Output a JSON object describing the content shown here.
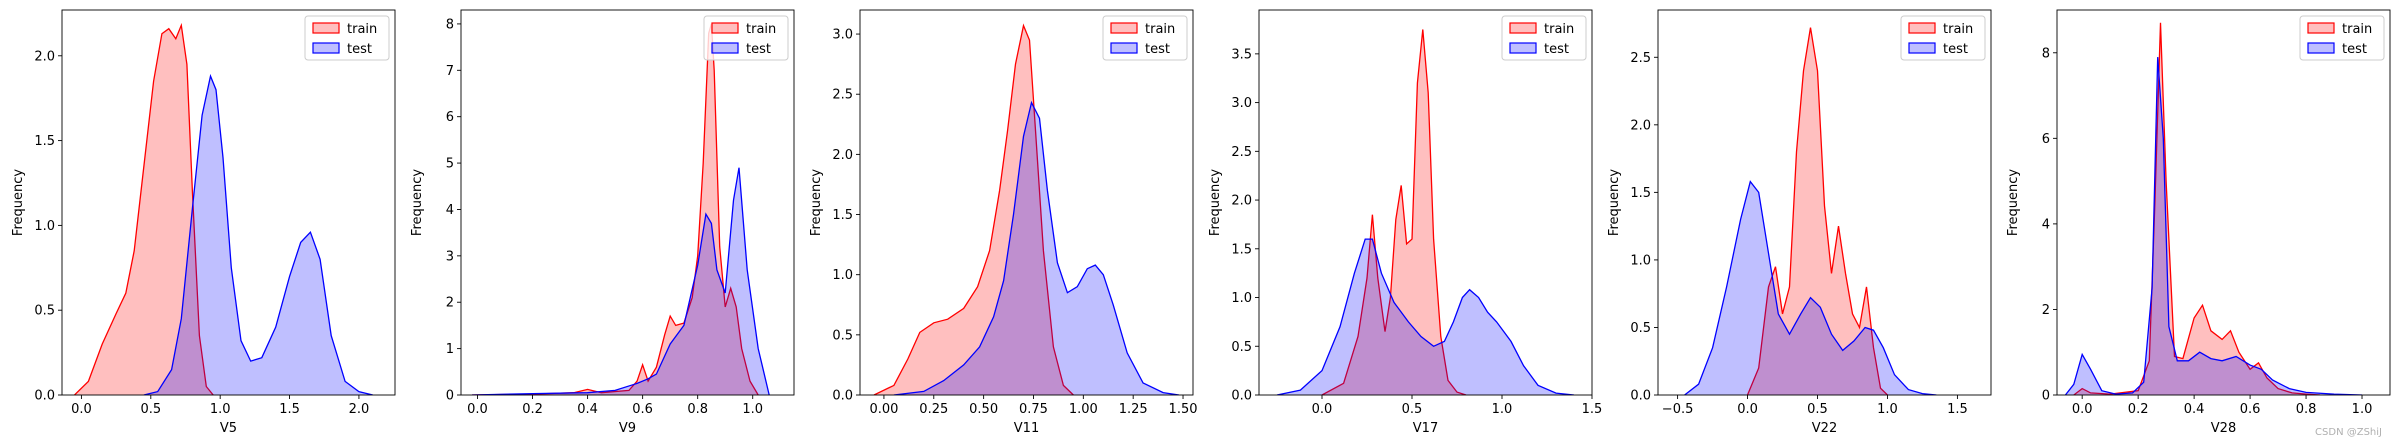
{
  "colors": {
    "train": "#ff0000",
    "test": "#0000ff",
    "train_fill": "#ff0000",
    "test_fill": "#0000ff"
  },
  "watermark": "CSDN @ZShiJ",
  "chart_data": [
    {
      "type": "area",
      "xlabel": "V5",
      "ylabel": "Frequency",
      "xlim": [
        -0.14,
        2.26
      ],
      "ylim": [
        0,
        2.27
      ],
      "xticks": [
        0.0,
        0.5,
        1.0,
        1.5,
        2.0
      ],
      "xtick_labels": [
        "0.0",
        "0.5",
        "1.0",
        "1.5",
        "2.0"
      ],
      "yticks": [
        0.0,
        0.5,
        1.0,
        1.5,
        2.0
      ],
      "ytick_labels": [
        "0.0",
        "0.5",
        "1.0",
        "1.5",
        "2.0"
      ],
      "legend": [
        "train",
        "test"
      ],
      "legend_loc": "upper right",
      "series": [
        {
          "name": "train",
          "x": [
            -0.05,
            0.05,
            0.15,
            0.25,
            0.32,
            0.38,
            0.45,
            0.52,
            0.58,
            0.63,
            0.68,
            0.72,
            0.76,
            0.8,
            0.85,
            0.9,
            0.95
          ],
          "y": [
            0,
            0.08,
            0.3,
            0.48,
            0.6,
            0.85,
            1.35,
            1.85,
            2.13,
            2.16,
            2.1,
            2.18,
            1.95,
            1.2,
            0.35,
            0.05,
            0
          ]
        },
        {
          "name": "test",
          "x": [
            0.45,
            0.55,
            0.65,
            0.72,
            0.8,
            0.87,
            0.93,
            0.97,
            1.02,
            1.08,
            1.15,
            1.22,
            1.3,
            1.4,
            1.5,
            1.58,
            1.65,
            1.72,
            1.8,
            1.9,
            2.0,
            2.1
          ],
          "y": [
            0,
            0.02,
            0.15,
            0.45,
            1.1,
            1.65,
            1.88,
            1.8,
            1.4,
            0.75,
            0.32,
            0.2,
            0.22,
            0.4,
            0.7,
            0.9,
            0.96,
            0.8,
            0.35,
            0.08,
            0.02,
            0
          ]
        }
      ]
    },
    {
      "type": "area",
      "xlabel": "V9",
      "ylabel": "Frequency",
      "xlim": [
        -0.06,
        1.15
      ],
      "ylim": [
        0,
        8.3
      ],
      "xticks": [
        0.0,
        0.2,
        0.4,
        0.6,
        0.8,
        1.0
      ],
      "xtick_labels": [
        "0.0",
        "0.2",
        "0.4",
        "0.6",
        "0.8",
        "1.0"
      ],
      "yticks": [
        0,
        1,
        2,
        3,
        4,
        5,
        6,
        7,
        8
      ],
      "ytick_labels": [
        "0",
        "1",
        "2",
        "3",
        "4",
        "5",
        "6",
        "7",
        "8"
      ],
      "legend": [
        "train",
        "test"
      ],
      "legend_loc": "upper right",
      "series": [
        {
          "name": "train",
          "x": [
            -0.02,
            0.2,
            0.35,
            0.4,
            0.45,
            0.55,
            0.58,
            0.6,
            0.62,
            0.65,
            0.68,
            0.7,
            0.72,
            0.75,
            0.78,
            0.8,
            0.82,
            0.84,
            0.85,
            0.86,
            0.88,
            0.9,
            0.92,
            0.94,
            0.96,
            0.99,
            1.02
          ],
          "y": [
            0,
            0.02,
            0.05,
            0.12,
            0.05,
            0.1,
            0.3,
            0.65,
            0.3,
            0.6,
            1.3,
            1.7,
            1.5,
            1.55,
            2.1,
            3.0,
            5.0,
            7.8,
            8.0,
            7.0,
            3.2,
            1.9,
            2.3,
            1.9,
            1.0,
            0.3,
            0
          ]
        },
        {
          "name": "test",
          "x": [
            -0.02,
            0.2,
            0.4,
            0.5,
            0.58,
            0.62,
            0.65,
            0.7,
            0.75,
            0.8,
            0.83,
            0.85,
            0.87,
            0.9,
            0.93,
            0.95,
            0.98,
            1.02,
            1.06
          ],
          "y": [
            0,
            0.03,
            0.05,
            0.1,
            0.25,
            0.35,
            0.45,
            1.1,
            1.5,
            2.8,
            3.9,
            3.7,
            2.7,
            2.2,
            4.2,
            4.9,
            2.7,
            1.0,
            0
          ]
        }
      ]
    },
    {
      "type": "area",
      "xlabel": "V11",
      "ylabel": "Frequency",
      "xlim": [
        -0.12,
        1.55
      ],
      "ylim": [
        0,
        3.2
      ],
      "xticks": [
        0.0,
        0.25,
        0.5,
        0.75,
        1.0,
        1.25,
        1.5
      ],
      "xtick_labels": [
        "0.00",
        "0.25",
        "0.50",
        "0.75",
        "1.00",
        "1.25",
        "1.50"
      ],
      "yticks": [
        0.0,
        0.5,
        1.0,
        1.5,
        2.0,
        2.5,
        3.0
      ],
      "ytick_labels": [
        "0.0",
        "0.5",
        "1.0",
        "1.5",
        "2.0",
        "2.5",
        "3.0"
      ],
      "legend": [
        "train",
        "test"
      ],
      "legend_loc": "upper right",
      "series": [
        {
          "name": "train",
          "x": [
            -0.05,
            0.05,
            0.12,
            0.18,
            0.25,
            0.32,
            0.4,
            0.47,
            0.53,
            0.58,
            0.62,
            0.66,
            0.7,
            0.73,
            0.76,
            0.8,
            0.85,
            0.9,
            0.95
          ],
          "y": [
            0,
            0.08,
            0.3,
            0.52,
            0.6,
            0.63,
            0.72,
            0.9,
            1.2,
            1.7,
            2.2,
            2.75,
            3.07,
            2.95,
            2.2,
            1.2,
            0.4,
            0.08,
            0
          ]
        },
        {
          "name": "test",
          "x": [
            0.05,
            0.2,
            0.3,
            0.4,
            0.48,
            0.55,
            0.6,
            0.65,
            0.7,
            0.74,
            0.78,
            0.82,
            0.87,
            0.92,
            0.97,
            1.02,
            1.06,
            1.1,
            1.15,
            1.22,
            1.3,
            1.4,
            1.48
          ],
          "y": [
            0,
            0.03,
            0.12,
            0.25,
            0.4,
            0.65,
            0.95,
            1.5,
            2.15,
            2.43,
            2.3,
            1.7,
            1.1,
            0.85,
            0.9,
            1.05,
            1.08,
            1.0,
            0.75,
            0.35,
            0.1,
            0.02,
            0
          ]
        }
      ]
    },
    {
      "type": "area",
      "xlabel": "V17",
      "ylabel": "Frequency",
      "xlim": [
        -0.35,
        1.5
      ],
      "ylim": [
        0,
        3.95
      ],
      "xticks": [
        0.0,
        0.5,
        1.0,
        1.5
      ],
      "xtick_labels": [
        "0.0",
        "0.5",
        "1.0",
        "1.5"
      ],
      "yticks": [
        0.0,
        0.5,
        1.0,
        1.5,
        2.0,
        2.5,
        3.0,
        3.5
      ],
      "ytick_labels": [
        "0.0",
        "0.5",
        "1.0",
        "1.5",
        "2.0",
        "2.5",
        "3.0",
        "3.5"
      ],
      "legend": [
        "train",
        "test"
      ],
      "legend_loc": "upper right",
      "series": [
        {
          "name": "train",
          "x": [
            0.0,
            0.12,
            0.2,
            0.25,
            0.28,
            0.31,
            0.35,
            0.38,
            0.41,
            0.44,
            0.47,
            0.5,
            0.53,
            0.56,
            0.59,
            0.62,
            0.66,
            0.7,
            0.75,
            0.8
          ],
          "y": [
            0,
            0.12,
            0.6,
            1.2,
            1.85,
            1.2,
            0.65,
            1.0,
            1.8,
            2.15,
            1.55,
            1.6,
            3.2,
            3.75,
            3.1,
            1.6,
            0.6,
            0.15,
            0.03,
            0
          ]
        },
        {
          "name": "test",
          "x": [
            -0.25,
            -0.12,
            0.0,
            0.1,
            0.18,
            0.24,
            0.28,
            0.33,
            0.4,
            0.48,
            0.55,
            0.62,
            0.68,
            0.73,
            0.78,
            0.82,
            0.87,
            0.92,
            0.97,
            1.05,
            1.12,
            1.2,
            1.3,
            1.4
          ],
          "y": [
            0,
            0.05,
            0.25,
            0.7,
            1.25,
            1.6,
            1.6,
            1.25,
            0.95,
            0.75,
            0.6,
            0.5,
            0.55,
            0.75,
            1.0,
            1.08,
            1.0,
            0.85,
            0.75,
            0.55,
            0.3,
            0.1,
            0.02,
            0
          ]
        }
      ]
    },
    {
      "type": "area",
      "xlabel": "V22",
      "ylabel": "Frequency",
      "xlim": [
        -0.64,
        1.74
      ],
      "ylim": [
        0,
        2.85
      ],
      "xticks": [
        -0.5,
        0.0,
        0.5,
        1.0,
        1.5
      ],
      "xtick_labels": [
        "−0.5",
        "0.0",
        "0.5",
        "1.0",
        "1.5"
      ],
      "yticks": [
        0.0,
        0.5,
        1.0,
        1.5,
        2.0,
        2.5
      ],
      "ytick_labels": [
        "0.0",
        "0.5",
        "1.0",
        "1.5",
        "2.0",
        "2.5"
      ],
      "legend": [
        "train",
        "test"
      ],
      "legend_loc": "upper right",
      "series": [
        {
          "name": "train",
          "x": [
            0.0,
            0.08,
            0.15,
            0.2,
            0.25,
            0.3,
            0.35,
            0.4,
            0.45,
            0.5,
            0.55,
            0.6,
            0.65,
            0.7,
            0.75,
            0.8,
            0.85,
            0.9,
            0.95,
            1.0
          ],
          "y": [
            0,
            0.2,
            0.8,
            0.95,
            0.6,
            0.8,
            1.8,
            2.4,
            2.72,
            2.4,
            1.4,
            0.9,
            1.25,
            0.9,
            0.6,
            0.5,
            0.8,
            0.35,
            0.05,
            0
          ]
        },
        {
          "name": "test",
          "x": [
            -0.45,
            -0.35,
            -0.25,
            -0.15,
            -0.05,
            0.02,
            0.08,
            0.15,
            0.22,
            0.3,
            0.38,
            0.45,
            0.52,
            0.6,
            0.68,
            0.76,
            0.84,
            0.9,
            0.97,
            1.05,
            1.15,
            1.25,
            1.35
          ],
          "y": [
            0,
            0.08,
            0.35,
            0.8,
            1.3,
            1.58,
            1.5,
            1.05,
            0.6,
            0.45,
            0.6,
            0.72,
            0.65,
            0.45,
            0.33,
            0.4,
            0.5,
            0.48,
            0.35,
            0.15,
            0.04,
            0.01,
            0
          ]
        }
      ]
    },
    {
      "type": "area",
      "xlabel": "V28",
      "ylabel": "Frequency",
      "xlim": [
        -0.09,
        1.1
      ],
      "ylim": [
        0,
        9.0
      ],
      "xticks": [
        0.0,
        0.2,
        0.4,
        0.6,
        0.8,
        1.0
      ],
      "xtick_labels": [
        "0.0",
        "0.2",
        "0.4",
        "0.6",
        "0.8",
        "1.0"
      ],
      "yticks": [
        0,
        2,
        4,
        6,
        8
      ],
      "ytick_labels": [
        "0",
        "2",
        "4",
        "6",
        "8"
      ],
      "legend": [
        "train",
        "test"
      ],
      "legend_loc": "upper right",
      "series": [
        {
          "name": "train",
          "x": [
            -0.03,
            0.0,
            0.03,
            0.1,
            0.2,
            0.24,
            0.26,
            0.28,
            0.3,
            0.33,
            0.36,
            0.4,
            0.43,
            0.46,
            0.5,
            0.53,
            0.56,
            0.6,
            0.63,
            0.66,
            0.7,
            0.75,
            0.8,
            0.85
          ],
          "y": [
            0,
            0.15,
            0.05,
            0.02,
            0.1,
            0.8,
            4.5,
            8.7,
            5.0,
            0.9,
            0.85,
            1.8,
            2.1,
            1.5,
            1.3,
            1.5,
            1.0,
            0.6,
            0.75,
            0.4,
            0.15,
            0.05,
            0.02,
            0
          ]
        },
        {
          "name": "test",
          "x": [
            -0.06,
            -0.03,
            0.0,
            0.03,
            0.07,
            0.12,
            0.18,
            0.22,
            0.25,
            0.27,
            0.29,
            0.31,
            0.34,
            0.38,
            0.42,
            0.46,
            0.5,
            0.55,
            0.6,
            0.64,
            0.68,
            0.74,
            0.8,
            0.9,
            1.0
          ],
          "y": [
            0,
            0.25,
            0.95,
            0.6,
            0.1,
            0.02,
            0.05,
            0.3,
            2.5,
            7.9,
            6.0,
            1.6,
            0.8,
            0.8,
            1.0,
            0.85,
            0.8,
            0.9,
            0.7,
            0.6,
            0.35,
            0.15,
            0.06,
            0.02,
            0
          ]
        }
      ]
    }
  ]
}
